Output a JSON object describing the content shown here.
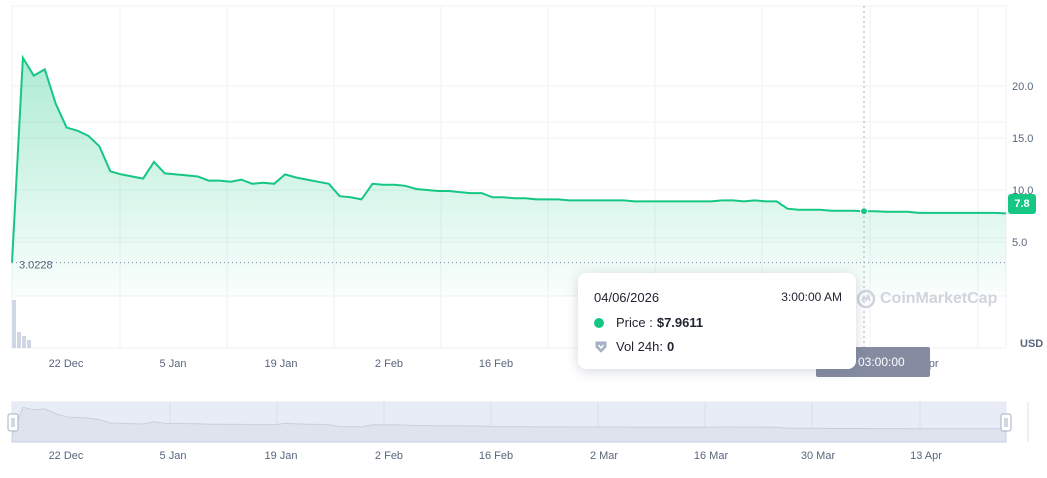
{
  "chart_data": {
    "type": "area",
    "x_labels": [
      "22 Dec",
      "5 Jan",
      "19 Jan",
      "2 Feb",
      "16 Feb",
      "2 Mar",
      "16 Mar",
      "30 Mar",
      "13 Apr"
    ],
    "main_x_labels_visible": [
      "22 Dec",
      "5 Jan",
      "19 Jan",
      "2 Feb",
      "16 Feb",
      "Apr"
    ],
    "y_ticks": [
      "20.0",
      "15.0",
      "10.0",
      "5.0"
    ],
    "y_tick_values": [
      20,
      15,
      10,
      5
    ],
    "ylim": [
      0,
      25
    ],
    "grid": true,
    "currency_label": "USD",
    "low_marker": {
      "label": "3.0228",
      "value": 3.0228
    },
    "current_price_label": "7.8",
    "series": [
      {
        "values": [
          3.02,
          22.7,
          21.0,
          21.6,
          18.3,
          16.0,
          15.7,
          15.2,
          14.2,
          11.8,
          11.5,
          11.3,
          11.1,
          12.7,
          11.6,
          11.5,
          11.4,
          11.3,
          10.9,
          10.9,
          10.8,
          11.0,
          10.6,
          10.7,
          10.6,
          11.5,
          11.2,
          11.0,
          10.8,
          10.6,
          9.4,
          9.3,
          9.1,
          10.6,
          10.5,
          10.5,
          10.4,
          10.1,
          10.0,
          9.9,
          9.9,
          9.8,
          9.7,
          9.7,
          9.3,
          9.3,
          9.2,
          9.2,
          9.1,
          9.1,
          9.1,
          9.0,
          9.0,
          9.0,
          9.0,
          9.0,
          9.0,
          8.9,
          8.9,
          8.9,
          8.9,
          8.9,
          8.9,
          8.9,
          8.9,
          9.0,
          9.0,
          8.9,
          9.0,
          8.9,
          8.9,
          8.2,
          8.1,
          8.1,
          8.1,
          8.0,
          8.0,
          8.0,
          7.96,
          7.95,
          7.9,
          7.9,
          7.9,
          7.8,
          7.8,
          7.8,
          7.8,
          7.8,
          7.8,
          7.8,
          7.8,
          7.75
        ]
      }
    ],
    "crosshair_index": 78
  },
  "tooltip": {
    "date": "04/06/2026",
    "time": "3:00:00 AM",
    "price_label": "Price :",
    "price_value": "$7.9611",
    "volume_label": "Vol 24h:",
    "volume_value": "0"
  },
  "crosshair_date_label": "26 03:00:00",
  "watermark": "CoinMarketCap",
  "colors": {
    "line": "#16c784",
    "area_top": "#16c784",
    "grid": "#eff2f5",
    "axis_text": "#58667e",
    "badge_gray": "#858ca2",
    "navigator_fill": "#e8ecf6"
  }
}
